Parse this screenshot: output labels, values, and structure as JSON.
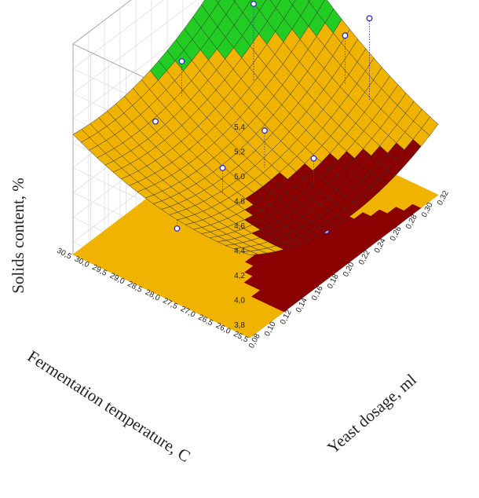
{
  "chart_data": {
    "type": "surface3d",
    "title": "",
    "x_axis": {
      "label": "Yeast dosage, ml",
      "ticks": [
        "0,08",
        "0,10",
        "0,12",
        "0,14",
        "0,16",
        "0,18",
        "0,20",
        "0,22",
        "0,24",
        "0,26",
        "0,28",
        "0,30",
        "0,32"
      ],
      "range": [
        0.08,
        0.32
      ]
    },
    "y_axis": {
      "label": "Fermentation temperature, C",
      "ticks": [
        "25,5",
        "26,0",
        "26,5",
        "27,0",
        "27,5",
        "28,0",
        "28,5",
        "29,0",
        "29,5",
        "30,0",
        "30,5"
      ],
      "range": [
        25.5,
        30.5
      ]
    },
    "z_axis": {
      "label": "Solids content, %",
      "ticks": [
        "3,8",
        "4,0",
        "4,2",
        "4,4",
        "4,6",
        "4,8",
        "5,0",
        "5,2",
        "5,4"
      ],
      "range": [
        3.7,
        5.4
      ]
    },
    "surface": {
      "model": "z = 4.3 + 0.15*xs + 0.35*ys + 0.25*xs*xs + 0.12*ys*ys + 0.20*xs*ys  (xs, ys scaled to [-1,1])",
      "contour_levels": [
        4.2,
        4.7
      ],
      "colors": {
        "low": "#8b0000",
        "mid": "#f0b400",
        "high": "#22cc22",
        "mesh": "#333333"
      }
    },
    "projected_contour_floor": true,
    "observations": [
      {
        "x": 0.14,
        "y": 29.5,
        "z_obs": 4.62,
        "z_fit": 4.62
      },
      {
        "x": 0.16,
        "y": 29.2,
        "z_obs": 5.05,
        "z_fit": 4.76
      },
      {
        "x": 0.22,
        "y": 28.5,
        "z_obs": 5.32,
        "z_fit": 4.7
      },
      {
        "x": 0.1,
        "y": 28.0,
        "z_obs": 4.15,
        "z_fit": 4.42
      },
      {
        "x": 0.14,
        "y": 27.6,
        "z_obs": 4.5,
        "z_fit": 4.29
      },
      {
        "x": 0.18,
        "y": 27.3,
        "z_obs": 4.65,
        "z_fit": 4.35
      },
      {
        "x": 0.22,
        "y": 26.8,
        "z_obs": 4.3,
        "z_fit": 4.1
      },
      {
        "x": 0.26,
        "y": 26.8,
        "z_obs": 5.1,
        "z_fit": 4.7
      },
      {
        "x": 0.3,
        "y": 27.0,
        "z_obs": 5.02,
        "z_fit": 4.35
      },
      {
        "x": 0.16,
        "y": 26.2,
        "z_obs": 4.12,
        "z_fit": 4.2
      },
      {
        "x": 0.2,
        "y": 26.0,
        "z_obs": 3.92,
        "z_fit": 4.2
      }
    ],
    "grid": true,
    "legend": "none"
  }
}
